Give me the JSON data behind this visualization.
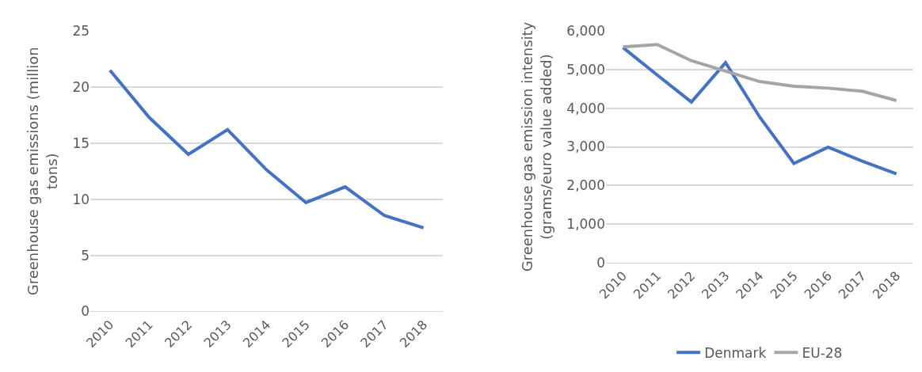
{
  "chart_data": [
    {
      "type": "line",
      "ylabel": "Greenhouse gas emissions (million tons)",
      "categories": [
        "2010",
        "2011",
        "2012",
        "2013",
        "2014",
        "2015",
        "2016",
        "2017",
        "2018"
      ],
      "series": [
        {
          "color": "#4472c4",
          "values": [
            21.5,
            17.3,
            14.0,
            16.2,
            12.6,
            9.7,
            11.1,
            8.55,
            7.45
          ]
        }
      ],
      "ylim": [
        0,
        25
      ],
      "yticks": [
        0,
        5,
        10,
        15,
        20,
        25
      ],
      "grid": "y",
      "legend": false,
      "marker": "none",
      "line_style": "solid"
    },
    {
      "type": "line",
      "ylabel": "Greenhouse gas emission intensity (grams/euro value added)",
      "categories": [
        "2010",
        "2011",
        "2012",
        "2013",
        "2014",
        "2015",
        "2016",
        "2017",
        "2018"
      ],
      "series": [
        {
          "name": "Denmark",
          "color": "#4472c4",
          "values": [
            5570,
            4860,
            4160,
            5180,
            3770,
            2570,
            2990,
            2630,
            2300
          ]
        },
        {
          "name": "EU-28",
          "color": "#a5a5a5",
          "values": [
            5590,
            5650,
            5230,
            4960,
            4690,
            4570,
            4520,
            4440,
            4200
          ]
        }
      ],
      "ylim": [
        0,
        6000
      ],
      "yticks": [
        0,
        {
          "value": 1000,
          "label": "1,000"
        },
        {
          "value": 2000,
          "label": "2,000"
        },
        {
          "value": 3000,
          "label": "3,000"
        },
        {
          "value": 4000,
          "label": "4,000"
        },
        {
          "value": 5000,
          "label": "5,000"
        },
        {
          "value": 6000,
          "label": "6,000"
        }
      ],
      "grid": "y",
      "legend": "bottom",
      "marker": "none",
      "line_style": "solid"
    }
  ]
}
